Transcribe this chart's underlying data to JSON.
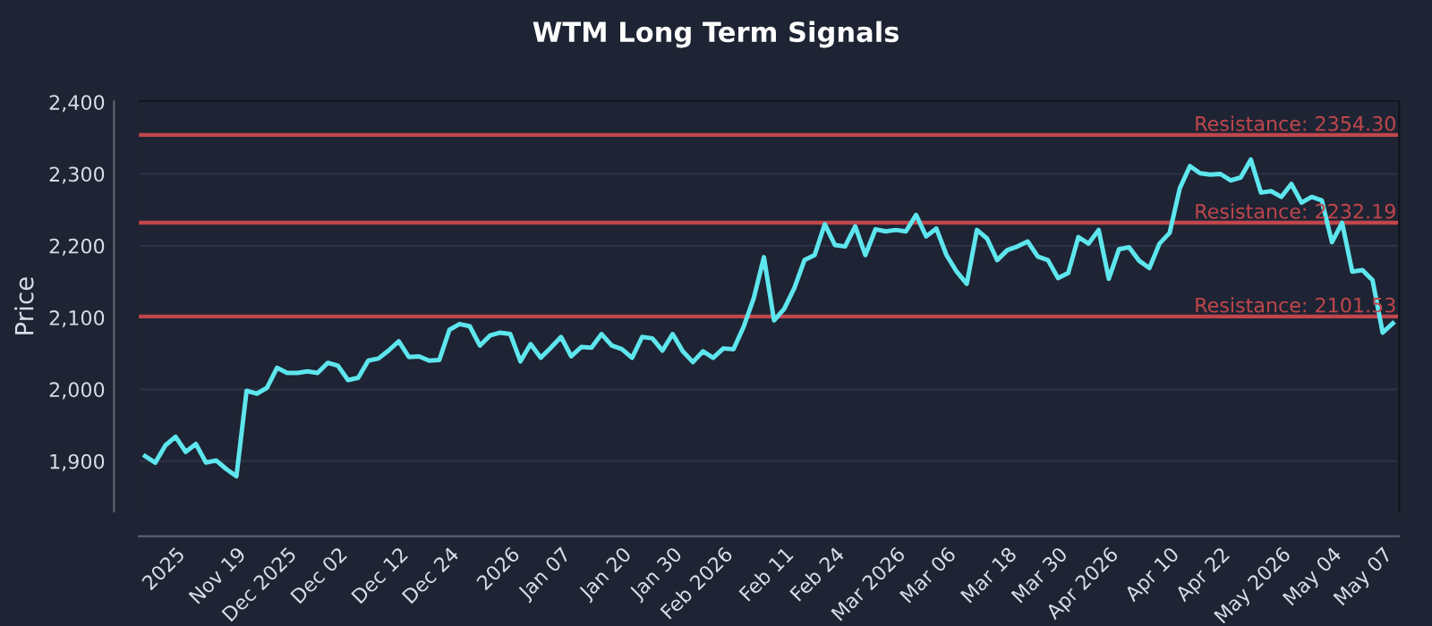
{
  "chart_data": {
    "type": "line",
    "title": "WTM Long Term Signals",
    "ylabel": "Price",
    "ylim": [
      1830,
      2401
    ],
    "categories": [
      null,
      null,
      null,
      "2025",
      null,
      null,
      null,
      null,
      null,
      "Nov 19",
      null,
      null,
      null,
      null,
      "Dec 2025",
      null,
      null,
      null,
      null,
      "Dec 02",
      null,
      null,
      null,
      null,
      null,
      "Dec 12",
      null,
      null,
      null,
      null,
      "Dec 24",
      null,
      null,
      null,
      null,
      null,
      "2026",
      null,
      null,
      null,
      null,
      "Jan 07",
      null,
      null,
      null,
      null,
      null,
      "Jan 20",
      null,
      null,
      null,
      null,
      "Jan 30",
      null,
      null,
      null,
      null,
      "Feb 2026",
      null,
      null,
      null,
      null,
      null,
      "Feb 11",
      null,
      null,
      null,
      null,
      "Feb 24",
      null,
      null,
      null,
      null,
      null,
      "Mar 2026",
      null,
      null,
      null,
      null,
      "Mar 06",
      null,
      null,
      null,
      null,
      null,
      "Mar 18",
      null,
      null,
      null,
      null,
      "Mar 30",
      null,
      null,
      null,
      null,
      "Apr 2026",
      null,
      null,
      null,
      null,
      null,
      "Apr 10",
      null,
      null,
      null,
      null,
      "Apr 22",
      null,
      null,
      null,
      null,
      null,
      "May 2026",
      null,
      null,
      null,
      null,
      "May 04",
      null,
      null,
      null,
      null,
      "May 07",
      null
    ],
    "yticks": [
      {
        "value": 1900,
        "label": "1,900"
      },
      {
        "value": 2000,
        "label": "2,000"
      },
      {
        "value": 2100,
        "label": "2,100"
      },
      {
        "value": 2200,
        "label": "2,200"
      },
      {
        "value": 2300,
        "label": "2,300"
      },
      {
        "value": 2400,
        "label": "2,400"
      }
    ],
    "grid": "y",
    "legend": false,
    "marker": "none",
    "line_style": "solid",
    "series": [
      {
        "color": "#5ee6ee",
        "values": [
          1907,
          1898,
          1922,
          1934,
          1913,
          1924,
          1898,
          1901,
          1889,
          1879,
          1998,
          1994,
          2002,
          2030,
          2023,
          2023,
          2025,
          2023,
          2037,
          2033,
          2013,
          2016,
          2040,
          2043,
          2054,
          2067,
          2045,
          2046,
          2040,
          2041,
          2083,
          2091,
          2088,
          2061,
          2075,
          2079,
          2077,
          2039,
          2063,
          2044,
          2058,
          2073,
          2046,
          2059,
          2058,
          2077,
          2061,
          2056,
          2044,
          2073,
          2071,
          2054,
          2077,
          2053,
          2038,
          2053,
          2044,
          2057,
          2056,
          2087,
          2127,
          2184,
          2096,
          2112,
          2141,
          2180,
          2187,
          2230,
          2201,
          2199,
          2227,
          2187,
          2223,
          2220,
          2222,
          2220,
          2243,
          2213,
          2224,
          2187,
          2164,
          2147,
          2222,
          2210,
          2180,
          2194,
          2199,
          2206,
          2185,
          2180,
          2155,
          2162,
          2212,
          2203,
          2222,
          2154,
          2195,
          2198,
          2179,
          2169,
          2203,
          2218,
          2280,
          2311,
          2301,
          2299,
          2300,
          2291,
          2295,
          2320,
          2274,
          2276,
          2268,
          2286,
          2260,
          2268,
          2263,
          2205,
          2232,
          2164,
          2166,
          2152,
          2079,
          2092
        ]
      }
    ],
    "ref_lines": [
      {
        "axis": "y",
        "value": 2354.3,
        "label": "Resistance: 2354.30",
        "color": "#c0464c"
      },
      {
        "axis": "y",
        "value": 2232.19,
        "label": "Resistance: 2232.19",
        "color": "#c0464c"
      },
      {
        "axis": "y",
        "value": 2101.53,
        "label": "Resistance: 2101.53",
        "color": "#c0464c"
      }
    ]
  }
}
